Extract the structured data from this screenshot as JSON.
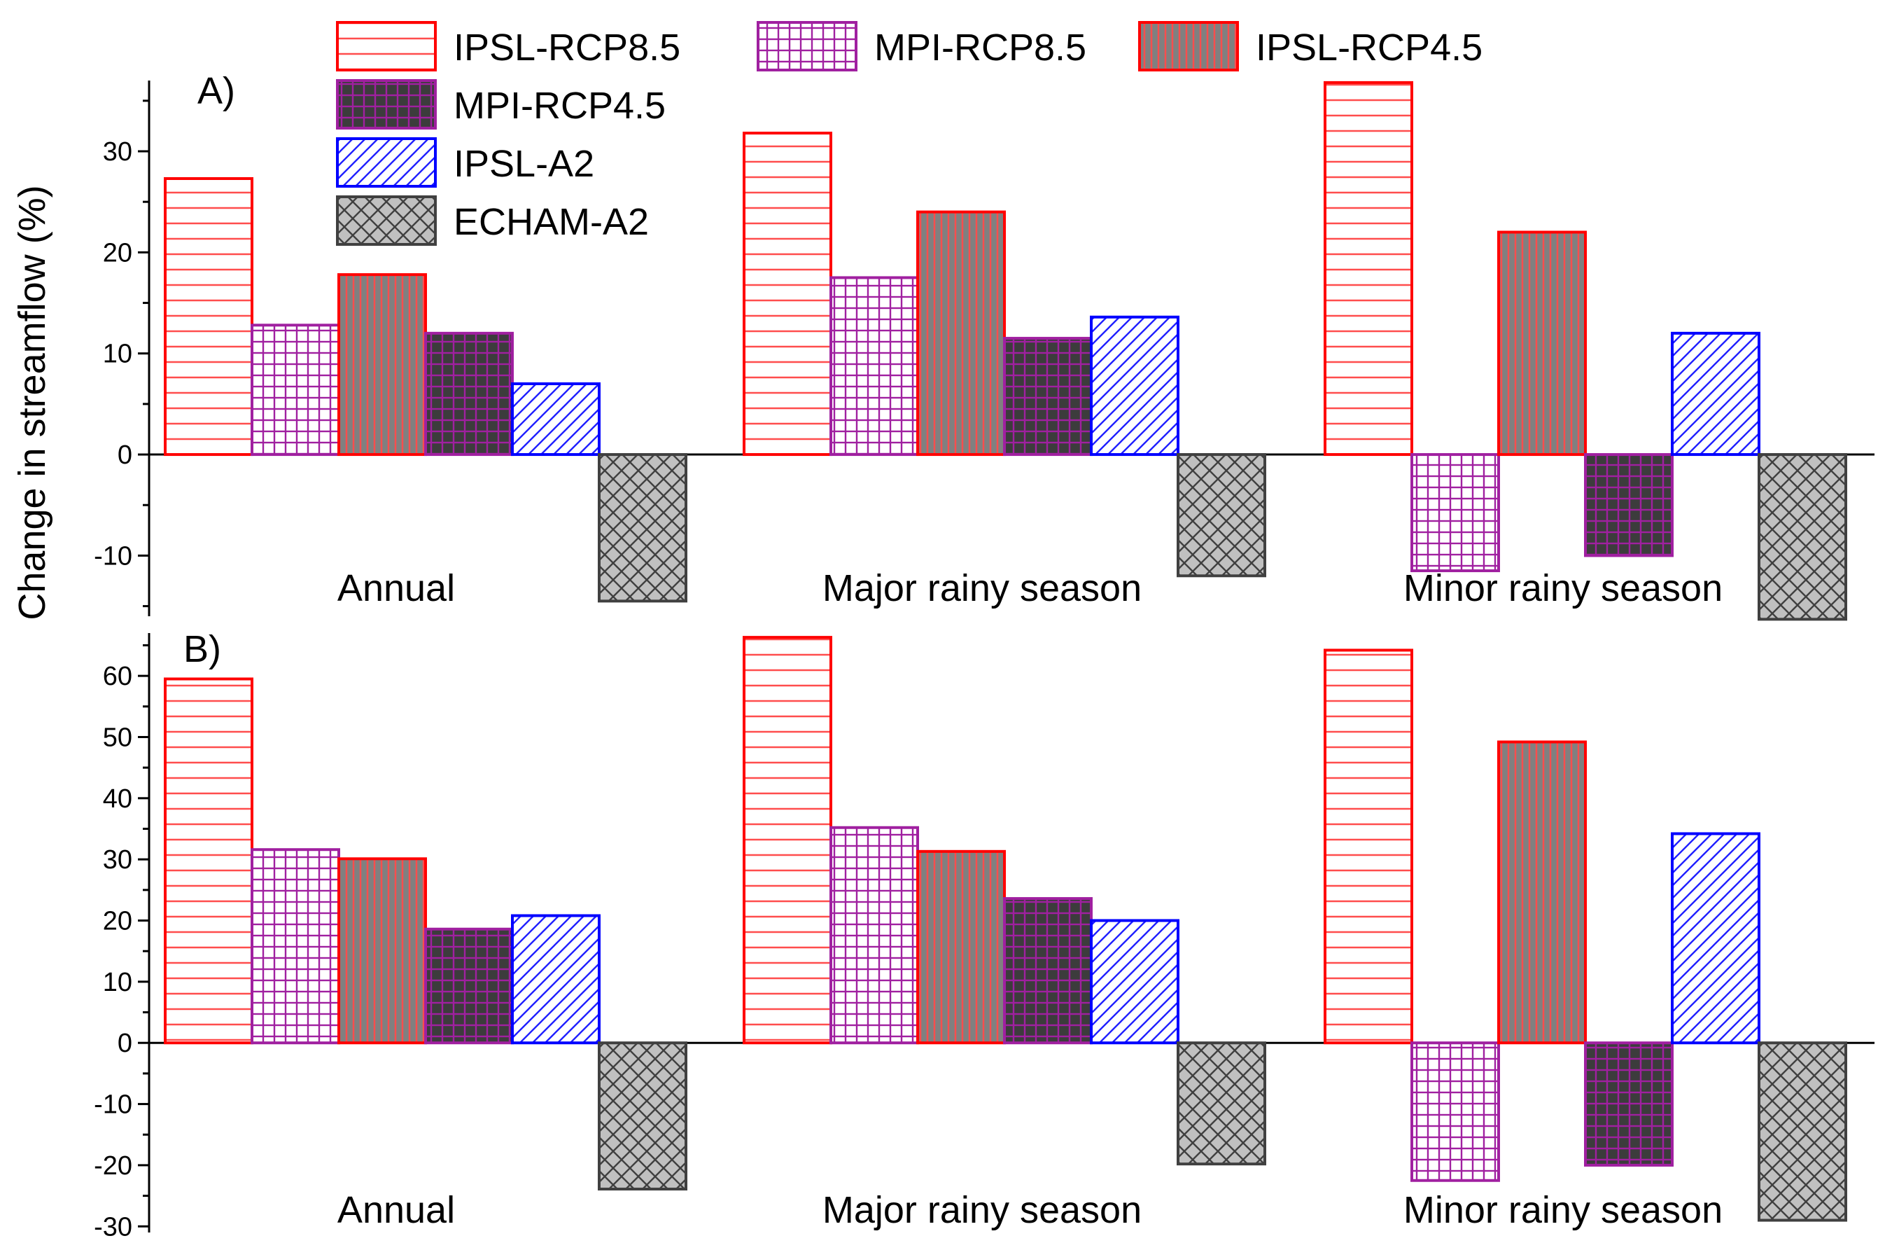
{
  "chart_data": {
    "type": "bar",
    "ylabel": "Change in streamflow (%)",
    "categories": [
      "Annual",
      "Major rainy season",
      "Minor rainy season"
    ],
    "legend": [
      {
        "name": "IPSL-RCP8.5",
        "pattern": "hlines",
        "fill": "#ffffff",
        "line": "#ff4d4d",
        "stroke": "#ff0000"
      },
      {
        "name": "MPI-RCP8.5",
        "pattern": "grid",
        "fill": "#ffffff",
        "line": "#a020a0",
        "stroke": "#a020a0"
      },
      {
        "name": "IPSL-RCP4.5",
        "pattern": "vlines",
        "fill": "#808080",
        "line": "#ff4d4d",
        "stroke": "#ff0000"
      },
      {
        "name": "MPI-RCP4.5",
        "pattern": "grid",
        "fill": "#3c3c3c",
        "line": "#a020a0",
        "stroke": "#a020a0"
      },
      {
        "name": "IPSL-A2",
        "pattern": "diag",
        "fill": "#ffffff",
        "line": "#2020ff",
        "stroke": "#0000ff"
      },
      {
        "name": "ECHAM-A2",
        "pattern": "cross",
        "fill": "#c0c0c0",
        "line": "#404040",
        "stroke": "#404040"
      }
    ],
    "panels": [
      {
        "label": "A)",
        "ylim": [
          -16,
          37
        ],
        "yticks": [
          -10,
          0,
          10,
          20,
          30
        ],
        "series": [
          {
            "name": "IPSL-RCP8.5",
            "values": [
              27.3,
              31.8,
              36.8
            ]
          },
          {
            "name": "MPI-RCP8.5",
            "values": [
              12.8,
              17.5,
              -11.5
            ]
          },
          {
            "name": "IPSL-RCP4.5",
            "values": [
              17.8,
              24.0,
              22.0
            ]
          },
          {
            "name": "MPI-RCP4.5",
            "values": [
              12.0,
              11.5,
              -10.0
            ]
          },
          {
            "name": "IPSL-A2",
            "values": [
              7.0,
              13.6,
              12.0
            ]
          },
          {
            "name": "ECHAM-A2",
            "values": [
              -14.5,
              -12.0,
              -16.3
            ]
          }
        ]
      },
      {
        "label": "B)",
        "ylim": [
          -31,
          67
        ],
        "yticks": [
          -30,
          -20,
          -10,
          0,
          10,
          20,
          30,
          40,
          50,
          60
        ],
        "series": [
          {
            "name": "IPSL-RCP8.5",
            "values": [
              59.5,
              66.3,
              64.2
            ]
          },
          {
            "name": "MPI-RCP8.5",
            "values": [
              31.6,
              35.2,
              -22.5
            ]
          },
          {
            "name": "IPSL-RCP4.5",
            "values": [
              30.1,
              31.3,
              49.2
            ]
          },
          {
            "name": "MPI-RCP4.5",
            "values": [
              18.6,
              23.6,
              -20.0
            ]
          },
          {
            "name": "IPSL-A2",
            "values": [
              20.8,
              20.0,
              34.2
            ]
          },
          {
            "name": "ECHAM-A2",
            "values": [
              -23.9,
              -19.8,
              -29.0
            ]
          }
        ]
      }
    ]
  }
}
